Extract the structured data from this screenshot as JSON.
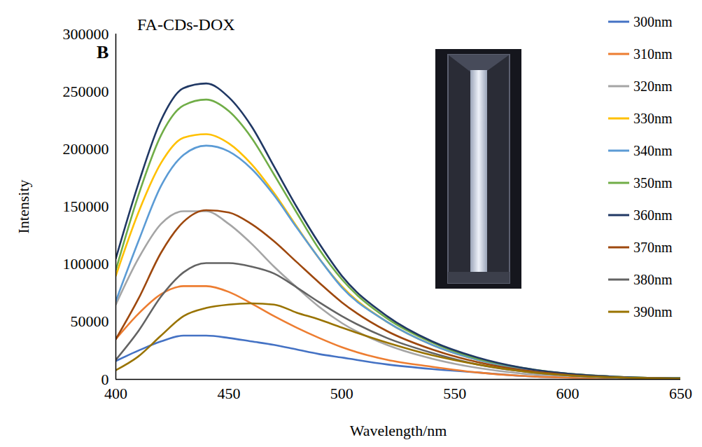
{
  "chart_data": {
    "type": "line",
    "title": "FA-CDs-DOX",
    "panel_label": "B",
    "x_label": "Wavelength/nm",
    "y_label": "Intensity",
    "xlim": [
      400,
      650
    ],
    "xticks": [
      400,
      450,
      500,
      550,
      600,
      650
    ],
    "ylim": [
      0,
      300000
    ],
    "yticks": [
      0,
      50000,
      100000,
      150000,
      200000,
      250000,
      300000
    ],
    "grid": false,
    "legend": "top-right",
    "x": [
      400,
      410,
      420,
      430,
      440,
      450,
      460,
      470,
      480,
      490,
      500,
      520,
      540,
      560,
      580,
      600,
      625,
      650
    ],
    "series": [
      {
        "name": "300nm",
        "color": "#4472c4",
        "values": [
          16000,
          25000,
          33000,
          38000,
          38000,
          36000,
          33000,
          30000,
          26000,
          22000,
          19000,
          13000,
          9000,
          6000,
          3000,
          1500,
          700,
          300
        ]
      },
      {
        "name": "310nm",
        "color": "#ed7d31",
        "values": [
          35000,
          57000,
          74000,
          81000,
          81000,
          76000,
          66000,
          55000,
          45000,
          36000,
          28000,
          17000,
          11000,
          6000,
          3000,
          1500,
          700,
          300
        ]
      },
      {
        "name": "320nm",
        "color": "#a5a5a5",
        "values": [
          65000,
          105000,
          135000,
          146000,
          146000,
          135000,
          118000,
          98000,
          80000,
          63000,
          49000,
          30000,
          18000,
          10000,
          5000,
          3000,
          1000,
          500
        ]
      },
      {
        "name": "330nm",
        "color": "#ffc000",
        "values": [
          90000,
          145000,
          188000,
          210000,
          213000,
          205000,
          187000,
          162000,
          133000,
          105000,
          81000,
          50000,
          30000,
          17000,
          9000,
          5000,
          2000,
          1000
        ]
      },
      {
        "name": "340nm",
        "color": "#5b9bd5",
        "values": [
          68000,
          120000,
          168000,
          195000,
          203000,
          198000,
          183000,
          160000,
          132000,
          105000,
          80000,
          50000,
          30000,
          17000,
          9000,
          5000,
          2000,
          1000
        ]
      },
      {
        "name": "350nm",
        "color": "#70ad47",
        "values": [
          95000,
          160000,
          212000,
          238000,
          243000,
          233000,
          210000,
          178000,
          145000,
          113000,
          87000,
          53000,
          32000,
          18000,
          10000,
          5000,
          2000,
          1000
        ]
      },
      {
        "name": "360nm",
        "color": "#203864",
        "values": [
          105000,
          170000,
          225000,
          253000,
          257000,
          245000,
          220000,
          185000,
          150000,
          118000,
          90000,
          55000,
          33000,
          19000,
          10000,
          5000,
          2000,
          1000
        ]
      },
      {
        "name": "370nm",
        "color": "#9e480e",
        "values": [
          35000,
          70000,
          110000,
          137000,
          147000,
          145000,
          135000,
          120000,
          102000,
          84000,
          67000,
          42000,
          26000,
          15000,
          8000,
          4000,
          1500,
          800
        ]
      },
      {
        "name": "380nm",
        "color": "#636363",
        "values": [
          17000,
          42000,
          72000,
          93000,
          101000,
          101000,
          98000,
          92000,
          80000,
          67000,
          55000,
          36000,
          23000,
          13000,
          7000,
          3500,
          1500,
          700
        ]
      },
      {
        "name": "390nm",
        "color": "#997300",
        "values": [
          8000,
          20000,
          38000,
          55000,
          62000,
          65000,
          66000,
          65000,
          58000,
          52000,
          45000,
          32000,
          21000,
          13000,
          7000,
          3500,
          1500,
          700
        ]
      }
    ]
  }
}
